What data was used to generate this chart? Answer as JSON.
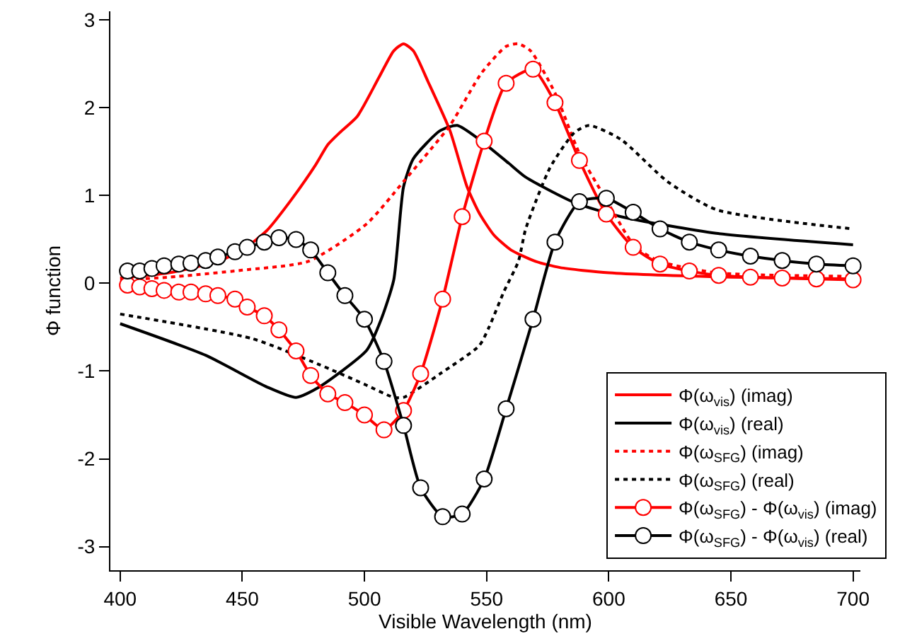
{
  "chart_data": {
    "type": "line",
    "xlabel": "Visible Wavelength (nm)",
    "ylabel": "Φ function",
    "xlim": [
      396,
      703
    ],
    "xticks": [
      400,
      450,
      500,
      550,
      600,
      650,
      700
    ],
    "ylim": [
      -3.27,
      3.1
    ],
    "yticks": [
      -3,
      -2,
      -1,
      0,
      1,
      2,
      3
    ],
    "legend": "bottom right",
    "marker": "none",
    "line_style": "solid",
    "series": [
      {
        "name": "Φ(ω$_{vis}$) (imag)",
        "color": "#ff0000",
        "x": [
          400,
          420,
          440,
          450,
          460,
          470,
          480,
          485,
          490,
          497,
          506,
          512,
          516,
          520,
          526,
          535,
          542,
          547,
          553,
          560,
          570,
          580,
          600,
          650,
          700
        ],
        "values": [
          0.06,
          0.12,
          0.25,
          0.38,
          0.6,
          0.95,
          1.35,
          1.58,
          1.72,
          1.9,
          2.35,
          2.65,
          2.73,
          2.65,
          2.3,
          1.74,
          1.1,
          0.8,
          0.55,
          0.38,
          0.25,
          0.18,
          0.12,
          0.07,
          0.05
        ]
      },
      {
        "name": "Φ(ω$_{vis}$) (real)",
        "color": "#000000",
        "x": [
          400,
          435,
          460,
          472,
          481,
          501,
          507,
          512,
          516,
          520,
          531,
          538,
          547,
          559,
          566,
          586,
          605,
          644,
          700
        ],
        "values": [
          -0.46,
          -0.82,
          -1.18,
          -1.3,
          -1.19,
          -0.76,
          -0.4,
          0.04,
          1.1,
          1.42,
          1.74,
          1.8,
          1.64,
          1.37,
          1.21,
          0.92,
          0.76,
          0.57,
          0.44
        ]
      },
      {
        "name": "Φ(ω$_{SFG}$) (imag)",
        "color": "#ff0000",
        "line_style": "dotted",
        "x": [
          400,
          420,
          450,
          477,
          501,
          516,
          535,
          548,
          558,
          563,
          568,
          578,
          588,
          598,
          611,
          621,
          644,
          700
        ],
        "values": [
          0.04,
          0.07,
          0.15,
          0.25,
          0.68,
          1.16,
          1.8,
          2.4,
          2.7,
          2.73,
          2.65,
          2.17,
          1.48,
          1.0,
          0.41,
          0.25,
          0.12,
          0.08
        ]
      },
      {
        "name": "Φ(ω$_{SFG}$) (real)",
        "color": "#000000",
        "line_style": "dotted",
        "x": [
          400,
          454,
          481,
          500,
          512,
          516,
          531,
          547,
          551,
          557,
          563,
          566,
          576,
          586,
          592,
          605,
          624,
          644,
          700
        ],
        "values": [
          -0.35,
          -0.63,
          -0.92,
          -1.15,
          -1.3,
          -1.3,
          -1.03,
          -0.71,
          -0.5,
          -0.1,
          0.25,
          0.62,
          1.32,
          1.72,
          1.8,
          1.64,
          1.16,
          0.84,
          0.62
        ]
      },
      {
        "name": "Φ(ω$_{SFG}$) - Φ(ω$_{vis}$) (imag)",
        "color": "#ff0000",
        "marker": "circle",
        "x": [
          403,
          408,
          413,
          418,
          424,
          429,
          435,
          440,
          447,
          452,
          459,
          465,
          472,
          478,
          485,
          492,
          500,
          508,
          516,
          523,
          532,
          540,
          549,
          558,
          569,
          578,
          588,
          599,
          610,
          621,
          633,
          645,
          658,
          671,
          685,
          700
        ],
        "values": [
          -0.02,
          -0.04,
          -0.06,
          -0.08,
          -0.1,
          -0.1,
          -0.12,
          -0.14,
          -0.18,
          -0.27,
          -0.37,
          -0.53,
          -0.77,
          -1.05,
          -1.26,
          -1.36,
          -1.5,
          -1.67,
          -1.45,
          -1.03,
          -0.18,
          0.76,
          1.62,
          2.28,
          2.44,
          2.06,
          1.4,
          0.79,
          0.41,
          0.22,
          0.14,
          0.09,
          0.07,
          0.06,
          0.05,
          0.04
        ]
      },
      {
        "name": "Φ(ω$_{SFG}$) - Φ(ω$_{vis}$) (real)",
        "color": "#000000",
        "marker": "circle",
        "x": [
          403,
          408,
          413,
          418,
          424,
          429,
          435,
          440,
          447,
          452,
          459,
          465,
          472,
          478,
          485,
          492,
          500,
          508,
          516,
          523,
          532,
          540,
          549,
          558,
          569,
          578,
          588,
          599,
          610,
          621,
          633,
          645,
          658,
          671,
          685,
          700
        ],
        "values": [
          0.14,
          0.14,
          0.17,
          0.2,
          0.22,
          0.23,
          0.26,
          0.3,
          0.36,
          0.41,
          0.47,
          0.52,
          0.5,
          0.38,
          0.12,
          -0.14,
          -0.41,
          -0.89,
          -1.62,
          -2.33,
          -2.66,
          -2.63,
          -2.23,
          -1.43,
          -0.41,
          0.47,
          0.93,
          0.97,
          0.81,
          0.62,
          0.47,
          0.38,
          0.31,
          0.26,
          0.22,
          0.2
        ]
      }
    ]
  }
}
